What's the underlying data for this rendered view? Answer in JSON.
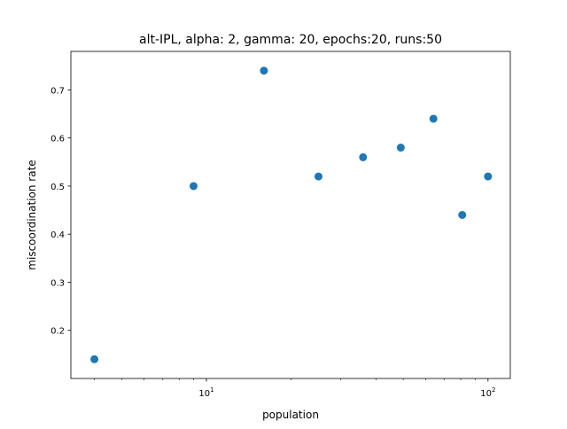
{
  "chart_data": {
    "type": "scatter",
    "title": "alt-IPL, alpha: 2, gamma: 20, epochs:20, runs:50",
    "xlabel": "population",
    "ylabel": "miscoordination rate",
    "x_scale": "log",
    "xlim": [
      3.3,
      120
    ],
    "ylim": [
      0.1,
      0.78
    ],
    "x_ticks": [
      {
        "value": 10,
        "base": "10",
        "exp": "1"
      },
      {
        "value": 100,
        "base": "10",
        "exp": "2"
      }
    ],
    "y_ticks": [
      {
        "value": 0.2,
        "label": "0.2"
      },
      {
        "value": 0.3,
        "label": "0.3"
      },
      {
        "value": 0.4,
        "label": "0.4"
      },
      {
        "value": 0.5,
        "label": "0.5"
      },
      {
        "value": 0.6,
        "label": "0.6"
      },
      {
        "value": 0.7,
        "label": "0.7"
      }
    ],
    "grid": false,
    "marker_color": "#1f77b4",
    "series": [
      {
        "x": [
          4,
          9,
          16,
          25,
          36,
          49,
          64,
          81,
          100
        ],
        "y": [
          0.14,
          0.5,
          0.74,
          0.52,
          0.56,
          0.58,
          0.64,
          0.44,
          0.52
        ]
      }
    ]
  }
}
